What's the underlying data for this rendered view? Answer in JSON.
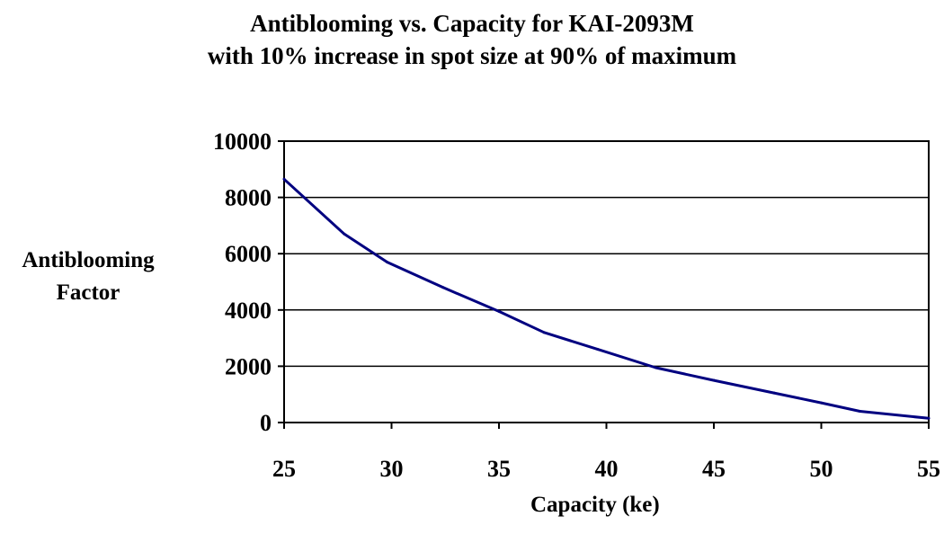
{
  "chart_data": {
    "type": "line",
    "title": [
      "Antiblooming vs. Capacity for KAI-2093M",
      "with 10% increase in spot size at 90% of maximum"
    ],
    "xlabel": "Capacity (ke)",
    "ylabel": [
      "Antiblooming",
      "Factor"
    ],
    "xlim": [
      25,
      55
    ],
    "ylim": [
      0,
      10000
    ],
    "xticks": [
      25,
      30,
      35,
      40,
      45,
      50,
      55
    ],
    "yticks": [
      0,
      2000,
      4000,
      6000,
      8000,
      10000
    ],
    "grid": "horizontal",
    "legend": "none",
    "series": [
      {
        "color": "#000080",
        "x": [
          25.0,
          27.8,
          29.8,
          32.4,
          35.0,
          37.1,
          39.6,
          42.3,
          45.0,
          47.8,
          50.0,
          51.8,
          55.0
        ],
        "y": [
          8650,
          6700,
          5700,
          4800,
          3950,
          3200,
          2600,
          1950,
          1500,
          1050,
          700,
          400,
          150
        ]
      }
    ]
  }
}
